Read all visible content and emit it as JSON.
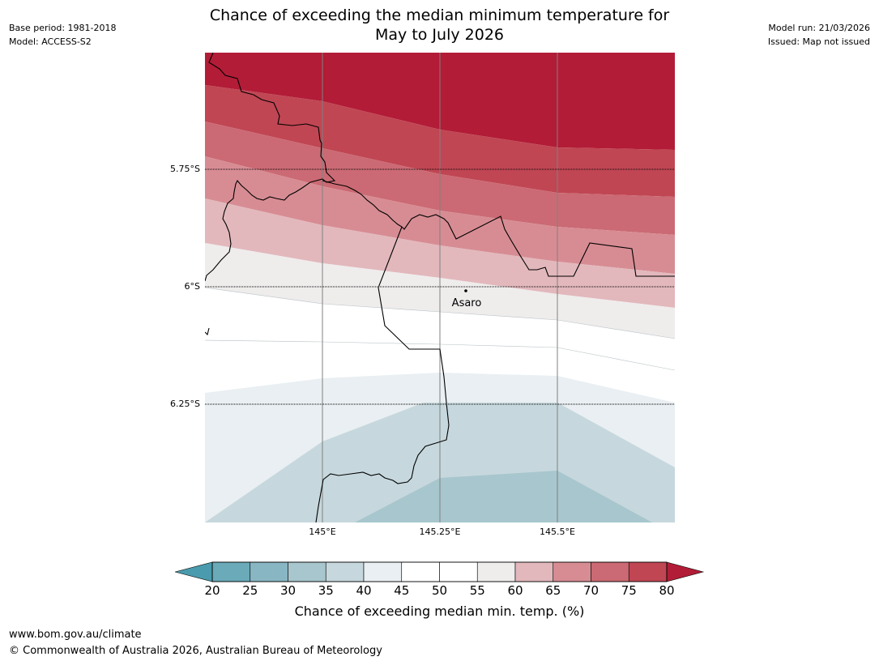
{
  "header": {
    "base_period": "Base period: 1981-2018",
    "model": "Model: ACCESS-S2",
    "model_run": "Model run: 21/03/2026",
    "issued": "Issued: Map not issued",
    "title_line1": "Chance of exceeding the median minimum temperature for",
    "title_line2": "May to July 2026"
  },
  "map": {
    "lat_labels": [
      "5.75°S",
      "6°S",
      "6.25°S"
    ],
    "lon_labels": [
      "145°E",
      "145.25°E",
      "145.5°E"
    ],
    "place": "Asaro",
    "palette": {
      "p75_80": "#b21c37",
      "p70_75": "#c04653",
      "p65_70": "#cb6a74",
      "p60_65": "#d78c93",
      "p55_60": "#e2b8bc",
      "p50_55": "#efecec",
      "p45_50": "#ffffff",
      "p40_45": "#e9eff2",
      "p35_40": "#c6d8dd",
      "p30_35": "#a8c6cd"
    }
  },
  "colorbar": {
    "ticks": [
      "20",
      "25",
      "30",
      "35",
      "40",
      "45",
      "50",
      "55",
      "60",
      "65",
      "70",
      "75",
      "80"
    ],
    "colors": [
      "#6aaab9",
      "#88b6c3",
      "#a8c6cd",
      "#c6d8dd",
      "#e9eff2",
      "#ffffff",
      "#ffffff",
      "#efecec",
      "#e2b8bc",
      "#d78c93",
      "#cb6a74",
      "#c04653"
    ],
    "low_color": "#4a9bad",
    "high_color": "#b21c37",
    "label": "Chance of exceeding median min. temp. (%)"
  },
  "footer": {
    "url": "www.bom.gov.au/climate",
    "copyright": "© Commonwealth of Australia 2026, Australian Bureau of Meteorology"
  }
}
